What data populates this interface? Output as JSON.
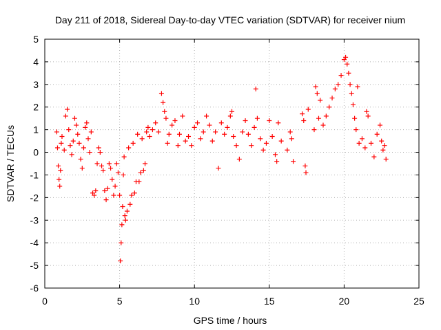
{
  "chart_data": {
    "type": "scatter",
    "title": "Day 211 of 2018, Sidereal Day-to-day VTEC variation (SDTVAR) for receiver nium",
    "xlabel": "GPS time / hours",
    "ylabel": "SDTVAR / TECUs",
    "xlim": [
      0,
      25
    ],
    "ylim": [
      -6,
      5
    ],
    "xticks": [
      "0",
      "5",
      "10",
      "15",
      "20",
      "25"
    ],
    "yticks": [
      "-6",
      "-5",
      "-4",
      "-3",
      "-2",
      "-1",
      "0",
      "1",
      "2",
      "3",
      "4",
      "5"
    ],
    "grid": true,
    "marker": "plus",
    "series": [
      {
        "name": "SDTVAR",
        "color": "#ff0000",
        "points": [
          [
            0.8,
            0.9
          ],
          [
            0.85,
            0.2
          ],
          [
            0.9,
            -0.6
          ],
          [
            0.95,
            -1.2
          ],
          [
            1.0,
            -1.5
          ],
          [
            1.05,
            -0.8
          ],
          [
            1.1,
            0.4
          ],
          [
            1.15,
            0.7
          ],
          [
            1.3,
            0.1
          ],
          [
            1.4,
            1.6
          ],
          [
            1.5,
            1.9
          ],
          [
            1.6,
            1.0
          ],
          [
            1.7,
            0.3
          ],
          [
            1.8,
            -0.1
          ],
          [
            1.9,
            0.5
          ],
          [
            2.0,
            1.5
          ],
          [
            2.1,
            1.2
          ],
          [
            2.2,
            0.8
          ],
          [
            2.3,
            0.4
          ],
          [
            2.4,
            -0.3
          ],
          [
            2.5,
            -0.7
          ],
          [
            2.6,
            0.2
          ],
          [
            2.7,
            1.1
          ],
          [
            2.8,
            1.3
          ],
          [
            2.9,
            0.6
          ],
          [
            3.0,
            0.0
          ],
          [
            3.1,
            0.9
          ],
          [
            3.2,
            -1.8
          ],
          [
            3.3,
            -1.9
          ],
          [
            3.4,
            -1.7
          ],
          [
            3.5,
            -0.5
          ],
          [
            3.6,
            0.2
          ],
          [
            3.7,
            0.0
          ],
          [
            3.8,
            -0.6
          ],
          [
            3.9,
            -0.8
          ],
          [
            4.0,
            -1.7
          ],
          [
            4.1,
            -2.1
          ],
          [
            4.2,
            -1.6
          ],
          [
            4.3,
            -0.5
          ],
          [
            4.4,
            -0.7
          ],
          [
            4.5,
            -1.2
          ],
          [
            4.6,
            -1.9
          ],
          [
            4.7,
            -1.5
          ],
          [
            4.8,
            -0.5
          ],
          [
            4.9,
            -0.9
          ],
          [
            5.0,
            -1.9
          ],
          [
            5.05,
            -4.8
          ],
          [
            5.1,
            -4.0
          ],
          [
            5.15,
            -3.2
          ],
          [
            5.2,
            -2.4
          ],
          [
            5.25,
            -1.0
          ],
          [
            5.3,
            -0.2
          ],
          [
            5.35,
            -2.8
          ],
          [
            5.4,
            -3.0
          ],
          [
            5.5,
            -2.6
          ],
          [
            5.6,
            0.2
          ],
          [
            5.7,
            -2.3
          ],
          [
            5.8,
            -1.9
          ],
          [
            5.9,
            0.4
          ],
          [
            6.0,
            -1.8
          ],
          [
            6.1,
            -1.3
          ],
          [
            6.2,
            0.8
          ],
          [
            6.3,
            -1.3
          ],
          [
            6.4,
            -0.9
          ],
          [
            6.5,
            0.6
          ],
          [
            6.6,
            -0.8
          ],
          [
            6.7,
            -0.5
          ],
          [
            6.8,
            0.9
          ],
          [
            6.9,
            1.1
          ],
          [
            7.0,
            0.7
          ],
          [
            7.2,
            1.0
          ],
          [
            7.4,
            1.3
          ],
          [
            7.6,
            0.9
          ],
          [
            7.8,
            2.6
          ],
          [
            7.9,
            2.2
          ],
          [
            8.0,
            1.8
          ],
          [
            8.1,
            1.5
          ],
          [
            8.2,
            0.4
          ],
          [
            8.3,
            0.8
          ],
          [
            8.5,
            1.2
          ],
          [
            8.7,
            1.4
          ],
          [
            8.9,
            0.3
          ],
          [
            9.0,
            0.8
          ],
          [
            9.2,
            1.6
          ],
          [
            9.4,
            0.5
          ],
          [
            9.6,
            0.7
          ],
          [
            9.8,
            0.3
          ],
          [
            10.0,
            1.1
          ],
          [
            10.2,
            1.3
          ],
          [
            10.4,
            0.6
          ],
          [
            10.6,
            0.9
          ],
          [
            10.8,
            1.6
          ],
          [
            11.0,
            1.2
          ],
          [
            11.2,
            0.5
          ],
          [
            11.4,
            0.9
          ],
          [
            11.6,
            -0.7
          ],
          [
            11.8,
            1.3
          ],
          [
            12.0,
            0.8
          ],
          [
            12.2,
            1.1
          ],
          [
            12.4,
            1.6
          ],
          [
            12.5,
            1.8
          ],
          [
            12.6,
            0.7
          ],
          [
            12.8,
            0.3
          ],
          [
            13.0,
            -0.3
          ],
          [
            13.2,
            0.9
          ],
          [
            13.4,
            1.4
          ],
          [
            13.6,
            0.8
          ],
          [
            13.8,
            0.3
          ],
          [
            14.0,
            1.1
          ],
          [
            14.1,
            2.8
          ],
          [
            14.2,
            1.5
          ],
          [
            14.4,
            0.6
          ],
          [
            14.6,
            0.1
          ],
          [
            14.8,
            0.4
          ],
          [
            15.0,
            1.4
          ],
          [
            15.2,
            0.7
          ],
          [
            15.4,
            -0.1
          ],
          [
            15.5,
            -0.4
          ],
          [
            15.6,
            1.3
          ],
          [
            15.8,
            0.5
          ],
          [
            16.2,
            0.1
          ],
          [
            16.4,
            0.9
          ],
          [
            16.5,
            0.6
          ],
          [
            16.6,
            -0.4
          ],
          [
            17.2,
            1.7
          ],
          [
            17.3,
            1.4
          ],
          [
            17.4,
            -0.6
          ],
          [
            17.45,
            -0.9
          ],
          [
            17.6,
            1.9
          ],
          [
            18.0,
            1.0
          ],
          [
            18.1,
            2.9
          ],
          [
            18.2,
            2.6
          ],
          [
            18.3,
            1.5
          ],
          [
            18.4,
            2.3
          ],
          [
            18.6,
            1.2
          ],
          [
            18.8,
            1.6
          ],
          [
            19.0,
            2.0
          ],
          [
            19.2,
            2.4
          ],
          [
            19.4,
            2.8
          ],
          [
            19.6,
            3.0
          ],
          [
            19.8,
            3.4
          ],
          [
            20.0,
            4.1
          ],
          [
            20.1,
            4.2
          ],
          [
            20.2,
            3.9
          ],
          [
            20.3,
            3.5
          ],
          [
            20.4,
            3.0
          ],
          [
            20.5,
            2.6
          ],
          [
            20.6,
            2.1
          ],
          [
            20.7,
            1.5
          ],
          [
            20.8,
            1.0
          ],
          [
            20.9,
            2.9
          ],
          [
            21.0,
            0.4
          ],
          [
            21.2,
            0.6
          ],
          [
            21.4,
            0.2
          ],
          [
            21.5,
            1.8
          ],
          [
            21.6,
            1.6
          ],
          [
            21.8,
            0.4
          ],
          [
            22.0,
            -0.2
          ],
          [
            22.2,
            0.8
          ],
          [
            22.4,
            1.2
          ],
          [
            22.5,
            0.5
          ],
          [
            22.6,
            0.1
          ],
          [
            22.7,
            0.3
          ],
          [
            22.8,
            -0.3
          ]
        ]
      }
    ]
  }
}
